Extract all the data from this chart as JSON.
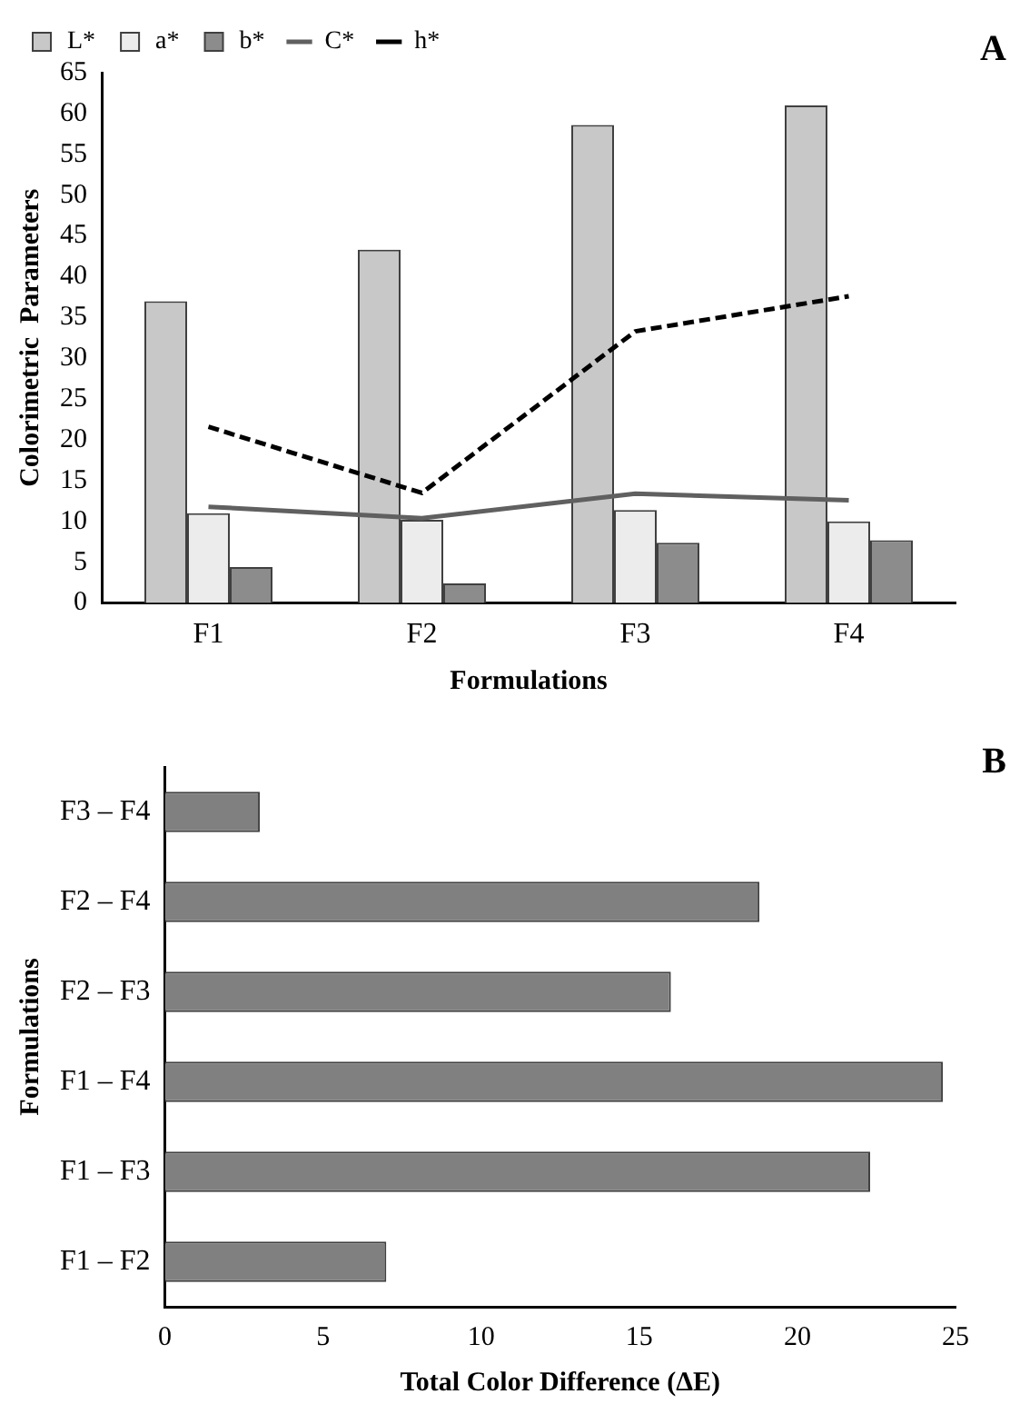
{
  "chart_data": [
    {
      "type": "bar",
      "categories": [
        "F1",
        "F2",
        "F3",
        "F4"
      ],
      "xlabel": "Formulations",
      "ylabel": "Colorimetric  Parameters",
      "ylim": [
        0,
        65
      ],
      "yticks": [
        0,
        5,
        10,
        15,
        20,
        25,
        30,
        35,
        40,
        45,
        50,
        55,
        60,
        65
      ],
      "grid": false,
      "legend": "top left",
      "annotations": [
        "A"
      ],
      "series": [
        {
          "name": "L*",
          "color": "#c8c8c8",
          "values": [
            37,
            43.3,
            58.6,
            61
          ]
        },
        {
          "name": "a*",
          "color": "#ececec",
          "values": [
            11,
            10.2,
            11.4,
            10
          ]
        },
        {
          "name": "b*",
          "color": "#8c8c8c",
          "values": [
            4.4,
            2.4,
            7.4,
            7.7
          ]
        },
        {
          "name": "C*",
          "type": "line",
          "color": "#606060",
          "line_style": "solid",
          "marker": "none",
          "values": [
            11.8,
            10.4,
            13.4,
            12.6
          ]
        },
        {
          "name": "h*",
          "type": "line",
          "color": "#000000",
          "line_style": "dashed",
          "marker": "none",
          "values": [
            21.6,
            13.5,
            33.3,
            37.6
          ]
        }
      ]
    },
    {
      "type": "bar",
      "orientation": "horizontal",
      "categories": [
        "F3 – F4",
        "F2 – F4",
        "F2 – F3",
        "F1 – F4",
        "F1 – F3",
        "F1 – F2"
      ],
      "xlabel": "Total Color Difference (ΔE)",
      "ylabel": "Formulations",
      "xlim": [
        0,
        25
      ],
      "xticks": [
        0,
        5,
        10,
        15,
        20,
        25
      ],
      "grid": false,
      "annotations": [
        "B"
      ],
      "values": [
        3.0,
        18.8,
        16.0,
        24.6,
        22.3,
        7.0
      ],
      "color": "#808080"
    }
  ]
}
